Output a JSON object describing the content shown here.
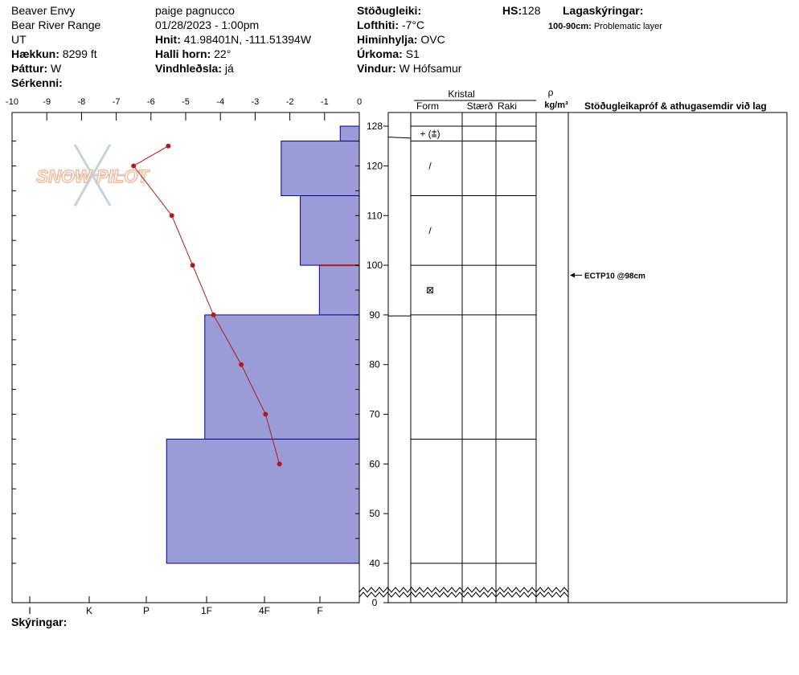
{
  "header": {
    "location": "Beaver Envy",
    "range": "Bear River Range",
    "state": "UT",
    "elevation_label": "Hækkun:",
    "elevation": "8299 ft",
    "aspect_label": "Þáttur:",
    "aspect": "W",
    "features_label": "Sérkenni:",
    "observer": "paige pagnucco",
    "datetime": "01/28/2023 - 1:00pm",
    "coords_label": "Hnit:",
    "coords": "41.98401N, -111.51394W",
    "slope_label": "Halli horn:",
    "slope": "22°",
    "wind_loading_label": "Vindhleðsla:",
    "wind_loading": "já",
    "stability_label": "Stöðugleiki:",
    "air_temp_label": "Lofthiti:",
    "air_temp": "-7°C",
    "sky_label": "Himinhylja:",
    "sky": "OVC",
    "precip_label": "Úrkoma:",
    "precip": "S1",
    "wind_label": "Vindur:",
    "wind": "W Hófsamur",
    "hs_label": "HS:",
    "hs": "128",
    "legend_title": "Lagaskýringar:",
    "legend_range": "100-90cm:",
    "legend_text": "Problematic layer"
  },
  "footer": {
    "notes_label": "Skýringar:"
  },
  "logo_text": "SNOW PILOT",
  "chart_data": {
    "type": "snow-profile",
    "temperature_axis": {
      "ticks": [
        "-10",
        "-9",
        "-8",
        "-7",
        "-6",
        "-5",
        "-4",
        "-3",
        "-2",
        "-1",
        "0"
      ],
      "range": [
        -10,
        0
      ]
    },
    "hardness_axis": {
      "ticks": [
        "I",
        "K",
        "P",
        "1F",
        "4F",
        "F"
      ]
    },
    "height_axis": {
      "ticks": [
        "128",
        "120",
        "110",
        "100",
        "90",
        "80",
        "70",
        "60",
        "50",
        "40",
        "0"
      ],
      "range": [
        0,
        128
      ],
      "break_at": 37
    },
    "columns": {
      "crystal": "Kristal",
      "form": "Form",
      "size": "Stærð",
      "moisture": "Raki",
      "density_symbol": "ρ",
      "density_unit": "kg/m³",
      "tests": "Stöðugleikapróf & athugasemdir við lag"
    },
    "layers": [
      {
        "top": 128,
        "bottom": 125,
        "hardness": 0.55
      },
      {
        "top": 125,
        "bottom": 114,
        "hardness": 2.25
      },
      {
        "top": 114,
        "bottom": 100,
        "hardness": 1.7
      },
      {
        "top": 100,
        "bottom": 90,
        "hardness": 1.15
      },
      {
        "top": 90,
        "bottom": 65,
        "hardness": 4.45
      },
      {
        "top": 65,
        "bottom": 40,
        "hardness": 5.55
      }
    ],
    "layer_lines": [
      128,
      125,
      114,
      100,
      90,
      65,
      40
    ],
    "problem_layer": {
      "top": 100,
      "bottom": 90
    },
    "temperature_profile": [
      {
        "height": 124,
        "temp": -5.5
      },
      {
        "height": 120,
        "temp": -6.5
      },
      {
        "height": 110,
        "temp": -5.4
      },
      {
        "height": 100,
        "temp": -4.8
      },
      {
        "height": 90,
        "temp": -4.2
      },
      {
        "height": 80,
        "temp": -3.4
      },
      {
        "height": 70,
        "temp": -2.7
      },
      {
        "height": 60,
        "temp": -2.3
      }
    ],
    "grain_symbols": [
      {
        "height": 126.5,
        "symbol": "+ (⩲)"
      },
      {
        "height": 120,
        "symbol": "/"
      },
      {
        "height": 107,
        "symbol": "/"
      },
      {
        "height": 95,
        "symbol": "⊠"
      }
    ],
    "test_result": {
      "height": 98,
      "label": "ECTP10 @98cm"
    },
    "colors": {
      "layer_fill": "#9b9bd7",
      "layer_stroke": "#0000a0",
      "temp_line": "#b01c1c",
      "problem": "#b01c1c"
    }
  }
}
